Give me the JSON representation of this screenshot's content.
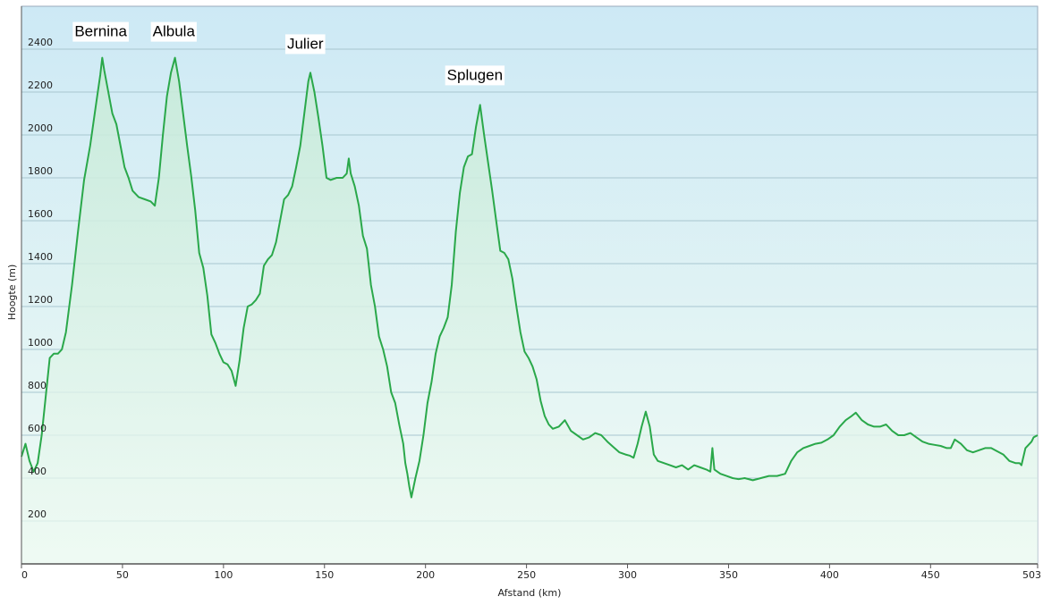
{
  "chart_data": {
    "type": "area",
    "xlabel": "Afstand  (km)",
    "ylabel": "Hoogte (m)",
    "xlim": [
      0,
      503
    ],
    "ylim": [
      0,
      2600
    ],
    "x_ticks": [
      0,
      50,
      100,
      150,
      200,
      250,
      300,
      350,
      400,
      450,
      503
    ],
    "y_ticks": [
      200,
      400,
      600,
      800,
      1000,
      1200,
      1400,
      1600,
      1800,
      2000,
      2200,
      2400
    ],
    "grid": true,
    "colors": {
      "line": "#2aa84a",
      "fill_top": "#c6ead8",
      "fill_bottom": "#eefaf3",
      "bg_top": "#cde9f5",
      "bg_bottom": "#f0fbf4",
      "grid": "#a8c6cf"
    },
    "series": [
      {
        "values": [
          [
            0,
            500
          ],
          [
            2,
            560
          ],
          [
            4,
            480
          ],
          [
            6,
            430
          ],
          [
            8,
            470
          ],
          [
            10,
            600
          ],
          [
            12,
            780
          ],
          [
            14,
            960
          ],
          [
            16,
            980
          ],
          [
            18,
            980
          ],
          [
            20,
            1000
          ],
          [
            22,
            1080
          ],
          [
            25,
            1300
          ],
          [
            28,
            1550
          ],
          [
            31,
            1790
          ],
          [
            34,
            1950
          ],
          [
            37,
            2150
          ],
          [
            39,
            2280
          ],
          [
            40,
            2360
          ],
          [
            41,
            2300
          ],
          [
            43,
            2200
          ],
          [
            45,
            2100
          ],
          [
            47,
            2050
          ],
          [
            49,
            1950
          ],
          [
            51,
            1850
          ],
          [
            53,
            1800
          ],
          [
            55,
            1740
          ],
          [
            58,
            1710
          ],
          [
            61,
            1700
          ],
          [
            64,
            1690
          ],
          [
            66,
            1670
          ],
          [
            68,
            1800
          ],
          [
            70,
            2000
          ],
          [
            72,
            2180
          ],
          [
            74,
            2290
          ],
          [
            76,
            2360
          ],
          [
            78,
            2250
          ],
          [
            80,
            2100
          ],
          [
            82,
            1950
          ],
          [
            84,
            1810
          ],
          [
            86,
            1650
          ],
          [
            88,
            1450
          ],
          [
            90,
            1380
          ],
          [
            92,
            1250
          ],
          [
            94,
            1070
          ],
          [
            96,
            1030
          ],
          [
            98,
            980
          ],
          [
            100,
            940
          ],
          [
            102,
            930
          ],
          [
            104,
            900
          ],
          [
            106,
            830
          ],
          [
            108,
            950
          ],
          [
            110,
            1100
          ],
          [
            112,
            1200
          ],
          [
            114,
            1210
          ],
          [
            116,
            1230
          ],
          [
            118,
            1260
          ],
          [
            120,
            1390
          ],
          [
            122,
            1420
          ],
          [
            124,
            1440
          ],
          [
            126,
            1500
          ],
          [
            128,
            1600
          ],
          [
            130,
            1700
          ],
          [
            132,
            1720
          ],
          [
            134,
            1760
          ],
          [
            136,
            1850
          ],
          [
            138,
            1950
          ],
          [
            140,
            2100
          ],
          [
            142,
            2250
          ],
          [
            143,
            2290
          ],
          [
            145,
            2200
          ],
          [
            147,
            2080
          ],
          [
            149,
            1950
          ],
          [
            151,
            1800
          ],
          [
            153,
            1790
          ],
          [
            156,
            1800
          ],
          [
            159,
            1800
          ],
          [
            161,
            1820
          ],
          [
            162,
            1890
          ],
          [
            163,
            1820
          ],
          [
            165,
            1760
          ],
          [
            167,
            1670
          ],
          [
            169,
            1530
          ],
          [
            171,
            1470
          ],
          [
            173,
            1300
          ],
          [
            175,
            1200
          ],
          [
            177,
            1060
          ],
          [
            179,
            1000
          ],
          [
            181,
            920
          ],
          [
            183,
            800
          ],
          [
            185,
            750
          ],
          [
            187,
            650
          ],
          [
            189,
            560
          ],
          [
            190,
            470
          ],
          [
            191,
            420
          ],
          [
            192,
            360
          ],
          [
            193,
            310
          ],
          [
            195,
            400
          ],
          [
            197,
            480
          ],
          [
            199,
            600
          ],
          [
            201,
            750
          ],
          [
            203,
            850
          ],
          [
            205,
            980
          ],
          [
            207,
            1060
          ],
          [
            209,
            1100
          ],
          [
            211,
            1150
          ],
          [
            213,
            1300
          ],
          [
            215,
            1550
          ],
          [
            217,
            1730
          ],
          [
            219,
            1850
          ],
          [
            221,
            1900
          ],
          [
            223,
            1910
          ],
          [
            225,
            2040
          ],
          [
            227,
            2140
          ],
          [
            229,
            2000
          ],
          [
            231,
            1870
          ],
          [
            233,
            1740
          ],
          [
            235,
            1600
          ],
          [
            237,
            1460
          ],
          [
            239,
            1450
          ],
          [
            241,
            1420
          ],
          [
            243,
            1330
          ],
          [
            245,
            1200
          ],
          [
            247,
            1080
          ],
          [
            249,
            990
          ],
          [
            251,
            960
          ],
          [
            253,
            920
          ],
          [
            255,
            860
          ],
          [
            257,
            760
          ],
          [
            259,
            690
          ],
          [
            261,
            650
          ],
          [
            263,
            630
          ],
          [
            266,
            640
          ],
          [
            269,
            670
          ],
          [
            272,
            620
          ],
          [
            275,
            600
          ],
          [
            278,
            580
          ],
          [
            281,
            590
          ],
          [
            284,
            610
          ],
          [
            287,
            600
          ],
          [
            290,
            570
          ],
          [
            293,
            545
          ],
          [
            296,
            520
          ],
          [
            299,
            510
          ],
          [
            301,
            505
          ],
          [
            303,
            495
          ],
          [
            305,
            560
          ],
          [
            307,
            640
          ],
          [
            309,
            710
          ],
          [
            311,
            640
          ],
          [
            313,
            510
          ],
          [
            315,
            480
          ],
          [
            318,
            470
          ],
          [
            321,
            460
          ],
          [
            324,
            450
          ],
          [
            327,
            460
          ],
          [
            330,
            440
          ],
          [
            333,
            460
          ],
          [
            336,
            450
          ],
          [
            339,
            440
          ],
          [
            341,
            430
          ],
          [
            342,
            540
          ],
          [
            343,
            440
          ],
          [
            346,
            420
          ],
          [
            349,
            410
          ],
          [
            352,
            400
          ],
          [
            355,
            395
          ],
          [
            358,
            400
          ],
          [
            362,
            390
          ],
          [
            366,
            400
          ],
          [
            370,
            410
          ],
          [
            374,
            410
          ],
          [
            378,
            420
          ],
          [
            381,
            480
          ],
          [
            384,
            520
          ],
          [
            387,
            540
          ],
          [
            390,
            550
          ],
          [
            393,
            560
          ],
          [
            396,
            565
          ],
          [
            399,
            580
          ],
          [
            402,
            600
          ],
          [
            405,
            640
          ],
          [
            408,
            670
          ],
          [
            411,
            690
          ],
          [
            413,
            705
          ],
          [
            416,
            670
          ],
          [
            419,
            650
          ],
          [
            422,
            640
          ],
          [
            425,
            640
          ],
          [
            428,
            650
          ],
          [
            431,
            620
          ],
          [
            434,
            600
          ],
          [
            437,
            600
          ],
          [
            440,
            610
          ],
          [
            443,
            590
          ],
          [
            446,
            570
          ],
          [
            449,
            560
          ],
          [
            452,
            555
          ],
          [
            455,
            550
          ],
          [
            458,
            540
          ],
          [
            460,
            540
          ],
          [
            462,
            580
          ],
          [
            465,
            560
          ],
          [
            468,
            530
          ],
          [
            471,
            520
          ],
          [
            474,
            530
          ],
          [
            477,
            540
          ],
          [
            480,
            540
          ],
          [
            483,
            525
          ],
          [
            486,
            510
          ],
          [
            489,
            480
          ],
          [
            492,
            470
          ],
          [
            494,
            470
          ],
          [
            495,
            460
          ],
          [
            497,
            540
          ],
          [
            499,
            560
          ],
          [
            500,
            570
          ],
          [
            501,
            590
          ],
          [
            503,
            600
          ]
        ]
      }
    ],
    "annotations": [
      {
        "text": "Bernina",
        "x": 40,
        "y": 2360
      },
      {
        "text": "Albula",
        "x": 76,
        "y": 2360
      },
      {
        "text": "Julier",
        "x": 143,
        "y": 2290
      },
      {
        "text": "Splugen",
        "x": 227,
        "y": 2140
      }
    ]
  }
}
